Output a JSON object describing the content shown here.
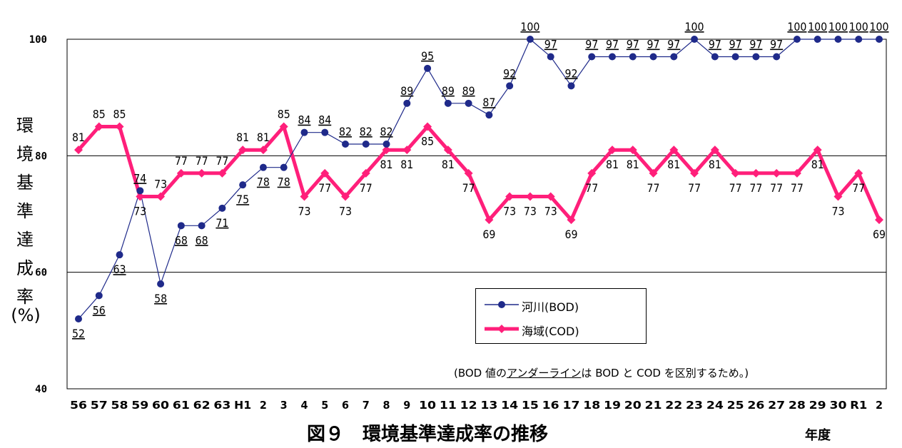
{
  "chart_data": {
    "type": "line",
    "title": "図９　環境基準達成率の推移",
    "ylabel_chars": [
      "環",
      "境",
      "基",
      "準",
      "達",
      "成",
      "率"
    ],
    "ylabel_unit": "(%)",
    "xunit": "年度",
    "ylim": [
      40,
      100
    ],
    "yticks": [
      "40",
      "60",
      "80",
      "100"
    ],
    "categories": [
      "56",
      "57",
      "58",
      "59",
      "60",
      "61",
      "62",
      "63",
      "H1",
      "2",
      "3",
      "4",
      "5",
      "6",
      "7",
      "8",
      "9",
      "10",
      "11",
      "12",
      "13",
      "14",
      "15",
      "16",
      "17",
      "18",
      "19",
      "20",
      "21",
      "22",
      "23",
      "24",
      "25",
      "26",
      "27",
      "28",
      "29",
      "30",
      "R1",
      "2"
    ],
    "series": [
      {
        "name": "河川(BOD)",
        "color": "#1f2a8a",
        "values": [
          52,
          56,
          63,
          74,
          58,
          68,
          68,
          71,
          75,
          78,
          78,
          84,
          84,
          82,
          82,
          82,
          89,
          95,
          89,
          89,
          87,
          92,
          100,
          97,
          92,
          97,
          97,
          97,
          97,
          97,
          100,
          97,
          97,
          97,
          97,
          100,
          100,
          100,
          100,
          100
        ]
      },
      {
        "name": "海域(COD)",
        "color": "#ff1f7a",
        "values": [
          81,
          85,
          85,
          73,
          73,
          77,
          77,
          77,
          81,
          81,
          85,
          73,
          77,
          73,
          77,
          81,
          81,
          85,
          81,
          77,
          69,
          73,
          73,
          73,
          69,
          77,
          81,
          81,
          77,
          81,
          77,
          81,
          77,
          77,
          77,
          77,
          81,
          73,
          77,
          69
        ]
      }
    ],
    "legend": "center-right",
    "grid": true,
    "note": {
      "prefix": "(BOD 値の",
      "underlined": "アンダーライン",
      "suffix": "は BOD と COD を区別するため。)"
    }
  }
}
